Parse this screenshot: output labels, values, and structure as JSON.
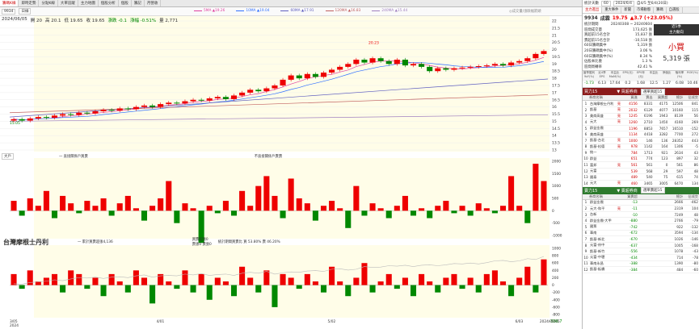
{
  "tabs": [
    "籌碼K線",
    "即時走勢",
    "分點K線",
    "大單追蹤",
    "主力地圖",
    "個股分析",
    "個股",
    "籌記",
    "月營收"
  ],
  "toolbar": {
    "code": "9934",
    "mode": "日線",
    "interval": "日線"
  },
  "ma_legend": [
    {
      "label": "5MA ▲19.26",
      "color": "#e040a0"
    },
    {
      "label": "10MA ▲19.04",
      "color": "#3070ff"
    },
    {
      "label": "60MA ▲17.91",
      "color": "#6060c0"
    },
    {
      "label": "120MA ▲16.83",
      "color": "#c06060"
    },
    {
      "label": "240MA ▲15.44",
      "color": "#a080c0"
    }
  ],
  "ma_note": "◎成交量/漲跌幅箭頭",
  "info": {
    "date": "2024/06/05",
    "open": "開 20",
    "high": "高 20.1",
    "low": "低 19.65",
    "close": "收 19.65",
    "change": "漲跌 -0.1",
    "pct": "漲幅 -0.51%",
    "vol": "量 2,771"
  },
  "price_axis": [
    "22",
    "21.5",
    "21",
    "20.5",
    "20",
    "19.5",
    "19",
    "18.5",
    "18",
    "17.5",
    "17",
    "16.5",
    "16",
    "15.5",
    "15",
    "14.5",
    "14",
    "13.5",
    "13"
  ],
  "high_label": "20.23",
  "low_label": "15.05",
  "panel2": {
    "select": "大戶",
    "legend1": "一 直接關係戶買賣",
    "legend2": "不直接關係戶賣賣",
    "axis": [
      "2000",
      "1500",
      "1000",
      "500",
      "0",
      "-500",
      "-1000"
    ]
  },
  "panel3": {
    "name": "台灣摩根士丹利",
    "legend1": "一 累計買賣超張4,136",
    "legend2": "買賣超張0",
    "legend3": "賣張0 賣張0",
    "legend4": "統計期間買賣比 買 53.80% 賣 46.20%",
    "axis": [
      "1000",
      "800",
      "600",
      "400",
      "200",
      "0",
      "-200",
      "-400",
      "-600",
      "-800"
    ],
    "bottom": "-586.7"
  },
  "xaxis": [
    "3/05\n2024",
    "4/01",
    "5/02",
    "6/03",
    "2024/06/05"
  ],
  "right": {
    "header": {
      "label": "統計天數",
      "days": "60",
      "date1": "2024/6/4",
      "date2": "自4/5 至6/4(20日)"
    },
    "tabs": [
      "主力進出",
      "重大事件",
      "新聞",
      "市場動態",
      "籌碼",
      "自選股"
    ],
    "stock": {
      "code": "9934",
      "name": "成霖",
      "price": "19.75",
      "change": "▲3.7 (+23.05%)"
    },
    "stats": [
      {
        "k": "統計期間",
        "v": "20240308 ~ 20240604"
      },
      {
        "k": "區間成交量",
        "v": "173,625 張"
      },
      {
        "k": "買超前15名合計",
        "v": "15,837 張"
      },
      {
        "k": "賣超前15名合計",
        "v": "-10,518 張"
      },
      {
        "k": "60日籌碼集中",
        "v": "5,319 張"
      },
      {
        "k": "20日籌碼集中(%)",
        "v": "3.06 %"
      },
      {
        "k": "60日籌碼集中(%)",
        "v": "8.34 %"
      },
      {
        "k": "佔股本比重",
        "v": "1.3 %"
      },
      {
        "k": "區間周轉率",
        "v": "42.41 %"
      }
    ],
    "side_box": {
      "t1": "近1季",
      "t2": "主力動向",
      "t3": "小買",
      "t4": "5,319 張"
    },
    "fund_head": [
      "當季獲利YoY(%)",
      "近4季EPS",
      "本益比MoM(%)",
      "EPS(元)",
      "EPS年(元)",
      "本益比",
      "淨值比",
      "殖利率(%)",
      "ROE(%)"
    ],
    "fund_vals": [
      "-1.73",
      "6.13",
      "17.64",
      "0.2",
      "1.68",
      "12.5",
      "1.27",
      "6.08",
      "10.46"
    ],
    "buy_title": "買力15",
    "buy_sub": "▼ 買超券商",
    "buy_sel": "選單買超15",
    "buy_head": [
      "",
      "券商名稱",
      "",
      "買進",
      "賣出",
      "買賣超",
      "",
      "佔成交比"
    ],
    "buy_rows": [
      {
        "n": "台灣摩根士丹利",
        "t": "亮",
        "a": "4156",
        "b": "8331",
        "c": "4175",
        "d": "12506",
        "e": "841"
      },
      {
        "n": "凱基",
        "t": "亮",
        "a": "2032",
        "b": "6129",
        "c": "4077",
        "d": "10160",
        "e": "115"
      },
      {
        "n": "美商高盛",
        "t": "亮",
        "a": "1245",
        "b": "6196",
        "c": "1943",
        "d": "8139",
        "e": "56"
      },
      {
        "n": "元大",
        "t": "亮",
        "a": "1260",
        "b": "2710",
        "c": "1450",
        "d": "4160",
        "e": "269"
      },
      {
        "n": "群益金鼎",
        "t": "",
        "a": "1196",
        "b": "8853",
        "c": "7657",
        "d": "16510",
        "e": "-152"
      },
      {
        "n": "美商高盛",
        "t": "",
        "a": "1134",
        "b": "4418",
        "c": "3282",
        "d": "7700",
        "e": "272"
      },
      {
        "n": "凱基-台北",
        "t": "亮",
        "a": "1000",
        "b": "146",
        "c": "136",
        "d": "28352",
        "e": "443"
      },
      {
        "n": "凱基-松德",
        "t": "亮",
        "a": "978",
        "b": "1142",
        "c": "164",
        "d": "1306",
        "e": "-5"
      },
      {
        "n": "統一",
        "t": "",
        "a": "784",
        "b": "1713",
        "c": "921",
        "d": "2634",
        "e": "43"
      },
      {
        "n": "群益",
        "t": "",
        "a": "651",
        "b": "774",
        "c": "123",
        "d": "897",
        "e": "32"
      },
      {
        "n": "富邦",
        "t": "亮",
        "a": "561",
        "b": "561",
        "c": "0",
        "d": "561",
        "e": "86"
      },
      {
        "n": "元富",
        "t": "",
        "a": "539",
        "b": "568",
        "c": "29",
        "d": "597",
        "e": "48"
      },
      {
        "n": "國泰",
        "t": "",
        "a": "489",
        "b": "540",
        "c": "75",
        "d": "615",
        "e": "74"
      },
      {
        "n": "元大",
        "t": "亮",
        "a": "460",
        "b": "3465",
        "c": "3005",
        "d": "6470",
        "e": "134"
      }
    ],
    "sell_title": "賣力15",
    "sell_sub": "▼ 賣超券商",
    "sell_sel": "選單賣超15",
    "sell_rows": [
      {
        "n": "群益金鼎",
        "t": "",
        "a": "-13",
        "b": "",
        "c": "",
        "d": "2666",
        "e": "-462"
      },
      {
        "n": "元大-和平",
        "t": "亮",
        "a": "-11",
        "b": "",
        "c": "",
        "d": "2319",
        "e": "104"
      },
      {
        "n": "台新",
        "t": "",
        "a": "-10",
        "b": "",
        "c": "",
        "d": "7249",
        "e": "48"
      },
      {
        "n": "群益金鼎-大甲",
        "t": "",
        "a": "-880",
        "b": "",
        "c": "",
        "d": "2766",
        "e": "-79"
      },
      {
        "n": "國票",
        "t": "",
        "a": "-742",
        "b": "",
        "c": "",
        "d": "922",
        "e": "-132"
      },
      {
        "n": "華南",
        "t": "",
        "a": "-672",
        "b": "",
        "c": "",
        "d": "3594",
        "e": "-134"
      },
      {
        "n": "凱基-新北",
        "t": "",
        "a": "-670",
        "b": "",
        "c": "",
        "d": "1026",
        "e": "-146"
      },
      {
        "n": "元富-府中",
        "t": "",
        "a": "-637",
        "b": "",
        "c": "",
        "d": "1005",
        "e": "-168"
      },
      {
        "n": "凱基-新竹",
        "t": "",
        "a": "-556",
        "b": "",
        "c": "",
        "d": "1078",
        "e": "-43"
      },
      {
        "n": "元富-中壢",
        "t": "",
        "a": "-434",
        "b": "",
        "c": "",
        "d": "714",
        "e": "-78"
      },
      {
        "n": "華南永昌",
        "t": "",
        "a": "-388",
        "b": "",
        "c": "",
        "d": "1390",
        "e": "-80"
      },
      {
        "n": "凱基-板橋",
        "t": "",
        "a": "-384",
        "b": "",
        "c": "",
        "d": "484",
        "e": "-60"
      }
    ]
  }
}
